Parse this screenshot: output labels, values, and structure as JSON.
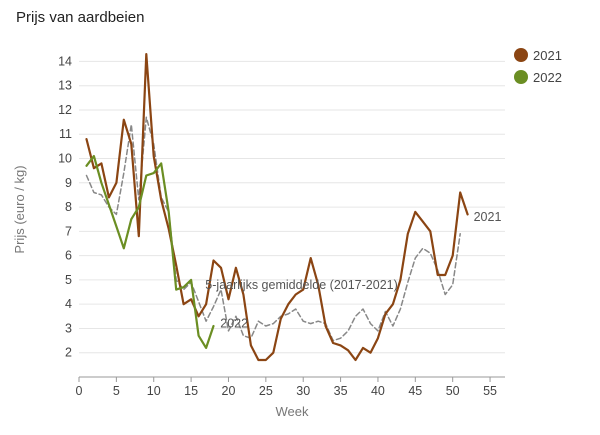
{
  "chart_data": {
    "type": "line",
    "title": "Prijs van aardbeien",
    "xlabel": "Week",
    "ylabel": "Prijs (euro / kg)",
    "xlim": [
      0,
      57
    ],
    "ylim": [
      1,
      14.8
    ],
    "xticks": [
      0,
      5,
      10,
      15,
      20,
      25,
      30,
      35,
      40,
      45,
      50,
      55
    ],
    "yticks": [
      2,
      3,
      4,
      5,
      6,
      7,
      8,
      9,
      10,
      11,
      12,
      13,
      14
    ],
    "grid": "horizontal",
    "legend": "top-right",
    "colors": {
      "2021": "#8b4513",
      "2022": "#6b8e23",
      "avg": "#888888",
      "grid": "#e6e6e6",
      "axis": "#999999"
    },
    "series": [
      {
        "name": "2021",
        "x": [
          1,
          2,
          3,
          4,
          5,
          6,
          7,
          8,
          9,
          10,
          11,
          12,
          13,
          14,
          15,
          16,
          17,
          18,
          19,
          20,
          21,
          22,
          23,
          24,
          25,
          26,
          27,
          28,
          29,
          30,
          31,
          32,
          33,
          34,
          35,
          36,
          37,
          38,
          39,
          40,
          41,
          42,
          43,
          44,
          45,
          46,
          47,
          48,
          49,
          50,
          51,
          52
        ],
        "y": [
          10.8,
          9.6,
          9.8,
          8.4,
          9.0,
          11.6,
          10.6,
          6.8,
          14.3,
          10.1,
          8.3,
          7.1,
          5.6,
          4.0,
          4.2,
          3.5,
          4.0,
          5.8,
          5.5,
          4.2,
          5.5,
          4.4,
          2.3,
          1.7,
          1.7,
          2.0,
          3.4,
          4.0,
          4.4,
          4.6,
          5.9,
          4.8,
          3.1,
          2.4,
          2.3,
          2.1,
          1.7,
          2.2,
          2.0,
          2.6,
          3.6,
          4.0,
          5.0,
          6.9,
          7.8,
          7.4,
          7.0,
          5.2,
          5.2,
          6.0,
          8.6,
          7.7
        ]
      },
      {
        "name": "2022",
        "x": [
          1,
          2,
          3,
          4,
          5,
          6,
          7,
          8,
          9,
          10,
          11,
          12,
          13,
          14,
          15,
          16,
          17,
          18
        ],
        "y": [
          9.7,
          10.1,
          9.0,
          8.1,
          7.2,
          6.3,
          7.5,
          8.0,
          9.3,
          9.4,
          9.8,
          7.8,
          4.6,
          4.7,
          5.0,
          2.7,
          2.2,
          3.1
        ]
      },
      {
        "name": "5-jaarlijks gemiddelde (2017-2021)",
        "x": [
          1,
          2,
          3,
          4,
          5,
          6,
          7,
          8,
          9,
          10,
          11,
          12,
          13,
          14,
          15,
          16,
          17,
          18,
          19,
          20,
          21,
          22,
          23,
          24,
          25,
          26,
          27,
          28,
          29,
          30,
          31,
          32,
          33,
          34,
          35,
          36,
          37,
          38,
          39,
          40,
          41,
          42,
          43,
          44,
          45,
          46,
          47,
          48,
          49,
          50,
          51
        ],
        "y": [
          9.3,
          8.6,
          8.5,
          8.0,
          7.7,
          9.4,
          11.4,
          8.3,
          11.7,
          10.6,
          8.4,
          7.8,
          5.0,
          4.6,
          4.9,
          4.1,
          3.3,
          3.9,
          4.6,
          2.9,
          3.5,
          2.7,
          2.6,
          3.3,
          3.1,
          3.2,
          3.5,
          3.6,
          3.8,
          3.3,
          3.2,
          3.3,
          3.2,
          2.5,
          2.6,
          2.9,
          3.5,
          3.8,
          3.2,
          2.9,
          3.7,
          3.1,
          3.8,
          4.9,
          5.9,
          6.3,
          6.1,
          5.4,
          4.4,
          4.8,
          6.9
        ]
      }
    ],
    "annotations": [
      {
        "text": "2021",
        "x": 52.8,
        "y": 7.6
      },
      {
        "text": "5-jaarlijks gemiddelde (2017-2021)",
        "x": 16.9,
        "y": 4.8
      },
      {
        "text": "2022",
        "x": 18.9,
        "y": 3.2
      }
    ]
  }
}
